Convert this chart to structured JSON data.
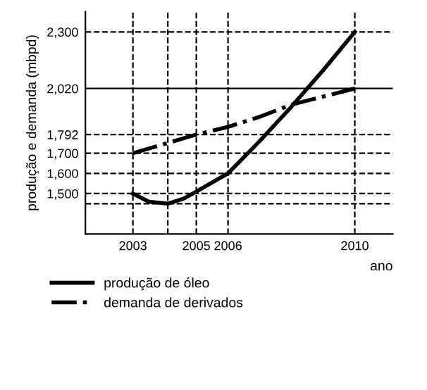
{
  "chart_data": {
    "type": "line",
    "xlabel": "ano",
    "ylabel": "produção e demanda (mbpd)",
    "xlim": [
      2001.5,
      2011.2
    ],
    "ylim": [
      1300,
      2400
    ],
    "xticks": [
      2003,
      2005,
      2006,
      2010
    ],
    "yticks": [
      {
        "value": 1500,
        "label": "1,500"
      },
      {
        "value": 1600,
        "label": "1,600"
      },
      {
        "value": 1700,
        "label": "1,700"
      },
      {
        "value": 1792,
        "label": "1,792"
      },
      {
        "value": 2020,
        "label": "2,020"
      },
      {
        "value": 2300,
        "label": "2,300"
      }
    ],
    "series": [
      {
        "name": "produção de óleo",
        "color": "#000000",
        "line_style": "solid",
        "x": [
          2003,
          2003.5,
          2004.1,
          2004.6,
          2005,
          2006,
          2007,
          2008,
          2009,
          2010
        ],
        "values": [
          1500,
          1460,
          1450,
          1475,
          1510,
          1600,
          1760,
          1930,
          2110,
          2300
        ]
      },
      {
        "name": "demanda de derivados",
        "color": "#000000",
        "line_style": "dashdot",
        "x": [
          2003,
          2005,
          2006,
          2007,
          2008,
          2009,
          2010
        ],
        "values": [
          1700,
          1792,
          1830,
          1880,
          1940,
          1980,
          2020
        ]
      }
    ],
    "ref_lines": [
      {
        "axis": "y",
        "value": 2300,
        "line_style": "dashed",
        "color": "#000000"
      },
      {
        "axis": "y",
        "value": 2020,
        "line_style": "solid",
        "color": "#000000"
      },
      {
        "axis": "y",
        "value": 1792,
        "line_style": "dashed",
        "color": "#000000"
      },
      {
        "axis": "y",
        "value": 1700,
        "line_style": "dashed",
        "color": "#000000"
      },
      {
        "axis": "y",
        "value": 1600,
        "line_style": "dashed",
        "color": "#000000"
      },
      {
        "axis": "y",
        "value": 1500,
        "line_style": "dashed",
        "color": "#000000"
      },
      {
        "axis": "y",
        "value": 1450,
        "line_style": "dashed",
        "color": "#000000"
      },
      {
        "axis": "x",
        "value": 2003,
        "line_style": "dashed",
        "color": "#000000"
      },
      {
        "axis": "x",
        "value": 2004.1,
        "line_style": "dashed",
        "color": "#000000"
      },
      {
        "axis": "x",
        "value": 2005,
        "line_style": "dashed",
        "color": "#000000"
      },
      {
        "axis": "x",
        "value": 2006,
        "line_style": "dashed",
        "color": "#000000"
      },
      {
        "axis": "x",
        "value": 2010,
        "line_style": "dashed",
        "color": "#000000"
      }
    ],
    "grid": false,
    "legend": "bottom",
    "marker": "none"
  }
}
